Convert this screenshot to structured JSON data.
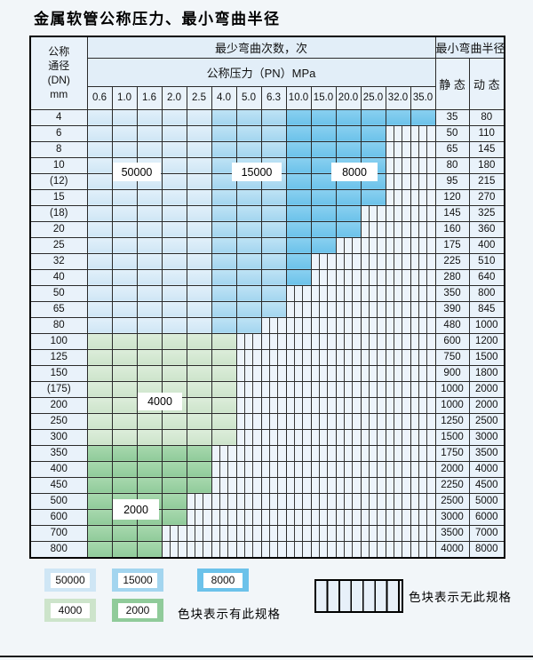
{
  "page": {
    "title": "金属软管公称压力、最小弯曲半径"
  },
  "colors": {
    "c50000": "#cfe6f5",
    "c15000": "#a3d5ef",
    "c8000": "#6cc2ea",
    "c4000": "#cde4cb",
    "c2000": "#90cb9a",
    "no_spec_bg": "#edf4fb",
    "grid_line": "#2b2b2b"
  },
  "table": {
    "header": {
      "dn_lines": [
        "公称",
        "通径",
        "(DN)",
        "mm"
      ],
      "bend_cycles": "最少弯曲次数，次",
      "pressure": "公称压力（PN）MPa",
      "min_radius": "最小弯曲半径",
      "static": "静 态",
      "dynamic": "动 态",
      "pressures": [
        "0.6",
        "1.0",
        "1.6",
        "2.0",
        "2.5",
        "4.0",
        "5.0",
        "6.3",
        "10.0",
        "15.0",
        "20.0",
        "25.0",
        "32.0",
        "35.0"
      ]
    },
    "cell_codes": {
      "L": "50000次色块",
      "M": "15000次色块",
      "D": "8000次色块",
      "A": "4000次色块",
      "B": "2000次色块",
      "S": "无此规格"
    },
    "rows": [
      {
        "dn": "4",
        "spans": [
          [
            "L",
            5
          ],
          [
            "M",
            3
          ],
          [
            "D",
            6
          ]
        ],
        "static": "35",
        "dynamic": "80"
      },
      {
        "dn": "6",
        "spans": [
          [
            "L",
            5
          ],
          [
            "M",
            3
          ],
          [
            "D",
            4
          ],
          [
            "S",
            2
          ]
        ],
        "static": "50",
        "dynamic": "110"
      },
      {
        "dn": "8",
        "spans": [
          [
            "L",
            5
          ],
          [
            "M",
            3
          ],
          [
            "D",
            4
          ],
          [
            "S",
            2
          ]
        ],
        "static": "65",
        "dynamic": "145"
      },
      {
        "dn": "10",
        "spans": [
          [
            "L",
            5
          ],
          [
            "M",
            3
          ],
          [
            "D",
            4
          ],
          [
            "S",
            2
          ]
        ],
        "static": "80",
        "dynamic": "180"
      },
      {
        "dn": "(12)",
        "spans": [
          [
            "L",
            5
          ],
          [
            "M",
            3
          ],
          [
            "D",
            4
          ],
          [
            "S",
            2
          ]
        ],
        "static": "95",
        "dynamic": "215"
      },
      {
        "dn": "15",
        "spans": [
          [
            "L",
            5
          ],
          [
            "M",
            3
          ],
          [
            "D",
            4
          ],
          [
            "S",
            2
          ]
        ],
        "static": "120",
        "dynamic": "270"
      },
      {
        "dn": "(18)",
        "spans": [
          [
            "L",
            5
          ],
          [
            "M",
            3
          ],
          [
            "D",
            3
          ],
          [
            "S",
            3
          ]
        ],
        "static": "145",
        "dynamic": "325"
      },
      {
        "dn": "20",
        "spans": [
          [
            "L",
            5
          ],
          [
            "M",
            3
          ],
          [
            "D",
            3
          ],
          [
            "S",
            3
          ]
        ],
        "static": "160",
        "dynamic": "360"
      },
      {
        "dn": "25",
        "spans": [
          [
            "L",
            5
          ],
          [
            "M",
            3
          ],
          [
            "D",
            2
          ],
          [
            "S",
            4
          ]
        ],
        "static": "175",
        "dynamic": "400"
      },
      {
        "dn": "32",
        "spans": [
          [
            "L",
            5
          ],
          [
            "M",
            3
          ],
          [
            "D",
            1
          ],
          [
            "S",
            5
          ]
        ],
        "static": "225",
        "dynamic": "510"
      },
      {
        "dn": "40",
        "spans": [
          [
            "L",
            5
          ],
          [
            "M",
            3
          ],
          [
            "D",
            1
          ],
          [
            "S",
            5
          ]
        ],
        "static": "280",
        "dynamic": "640"
      },
      {
        "dn": "50",
        "spans": [
          [
            "L",
            5
          ],
          [
            "M",
            3
          ],
          [
            "S",
            6
          ]
        ],
        "static": "350",
        "dynamic": "800"
      },
      {
        "dn": "65",
        "spans": [
          [
            "L",
            5
          ],
          [
            "M",
            3
          ],
          [
            "S",
            6
          ]
        ],
        "static": "390",
        "dynamic": "845"
      },
      {
        "dn": "80",
        "spans": [
          [
            "L",
            5
          ],
          [
            "M",
            2
          ],
          [
            "S",
            7
          ]
        ],
        "static": "480",
        "dynamic": "1000"
      },
      {
        "dn": "100",
        "spans": [
          [
            "A",
            6
          ],
          [
            "S",
            8
          ]
        ],
        "static": "600",
        "dynamic": "1200"
      },
      {
        "dn": "125",
        "spans": [
          [
            "A",
            6
          ],
          [
            "S",
            8
          ]
        ],
        "static": "750",
        "dynamic": "1500"
      },
      {
        "dn": "150",
        "spans": [
          [
            "A",
            6
          ],
          [
            "S",
            8
          ]
        ],
        "static": "900",
        "dynamic": "1800"
      },
      {
        "dn": "(175)",
        "spans": [
          [
            "A",
            6
          ],
          [
            "S",
            8
          ]
        ],
        "static": "1000",
        "dynamic": "2000"
      },
      {
        "dn": "200",
        "spans": [
          [
            "A",
            6
          ],
          [
            "S",
            8
          ]
        ],
        "static": "1000",
        "dynamic": "2000"
      },
      {
        "dn": "250",
        "spans": [
          [
            "A",
            6
          ],
          [
            "S",
            8
          ]
        ],
        "static": "1250",
        "dynamic": "2500"
      },
      {
        "dn": "300",
        "spans": [
          [
            "A",
            6
          ],
          [
            "S",
            8
          ]
        ],
        "static": "1500",
        "dynamic": "3000"
      },
      {
        "dn": "350",
        "spans": [
          [
            "B",
            5
          ],
          [
            "S",
            9
          ]
        ],
        "static": "1750",
        "dynamic": "3500"
      },
      {
        "dn": "400",
        "spans": [
          [
            "B",
            5
          ],
          [
            "S",
            9
          ]
        ],
        "static": "2000",
        "dynamic": "4000"
      },
      {
        "dn": "450",
        "spans": [
          [
            "B",
            5
          ],
          [
            "S",
            9
          ]
        ],
        "static": "2250",
        "dynamic": "4500"
      },
      {
        "dn": "500",
        "spans": [
          [
            "B",
            4
          ],
          [
            "S",
            10
          ]
        ],
        "static": "2500",
        "dynamic": "5000"
      },
      {
        "dn": "600",
        "spans": [
          [
            "B",
            4
          ],
          [
            "S",
            10
          ]
        ],
        "static": "3000",
        "dynamic": "6000"
      },
      {
        "dn": "700",
        "spans": [
          [
            "B",
            3
          ],
          [
            "S",
            11
          ]
        ],
        "static": "3500",
        "dynamic": "7000"
      },
      {
        "dn": "800",
        "spans": [
          [
            "B",
            3
          ],
          [
            "S",
            11
          ]
        ],
        "static": "4000",
        "dynamic": "8000"
      }
    ]
  },
  "overlays": {
    "label_50000": "50000",
    "label_15000": "15000",
    "label_8000": "8000",
    "label_4000": "4000",
    "label_2000": "2000"
  },
  "legend": {
    "sw_50000": "50000",
    "sw_15000": "15000",
    "sw_8000": "8000",
    "sw_4000": "4000",
    "sw_2000": "2000",
    "has_spec_text": "色块表示有此规格",
    "no_spec_text": "色块表示无此规格"
  }
}
